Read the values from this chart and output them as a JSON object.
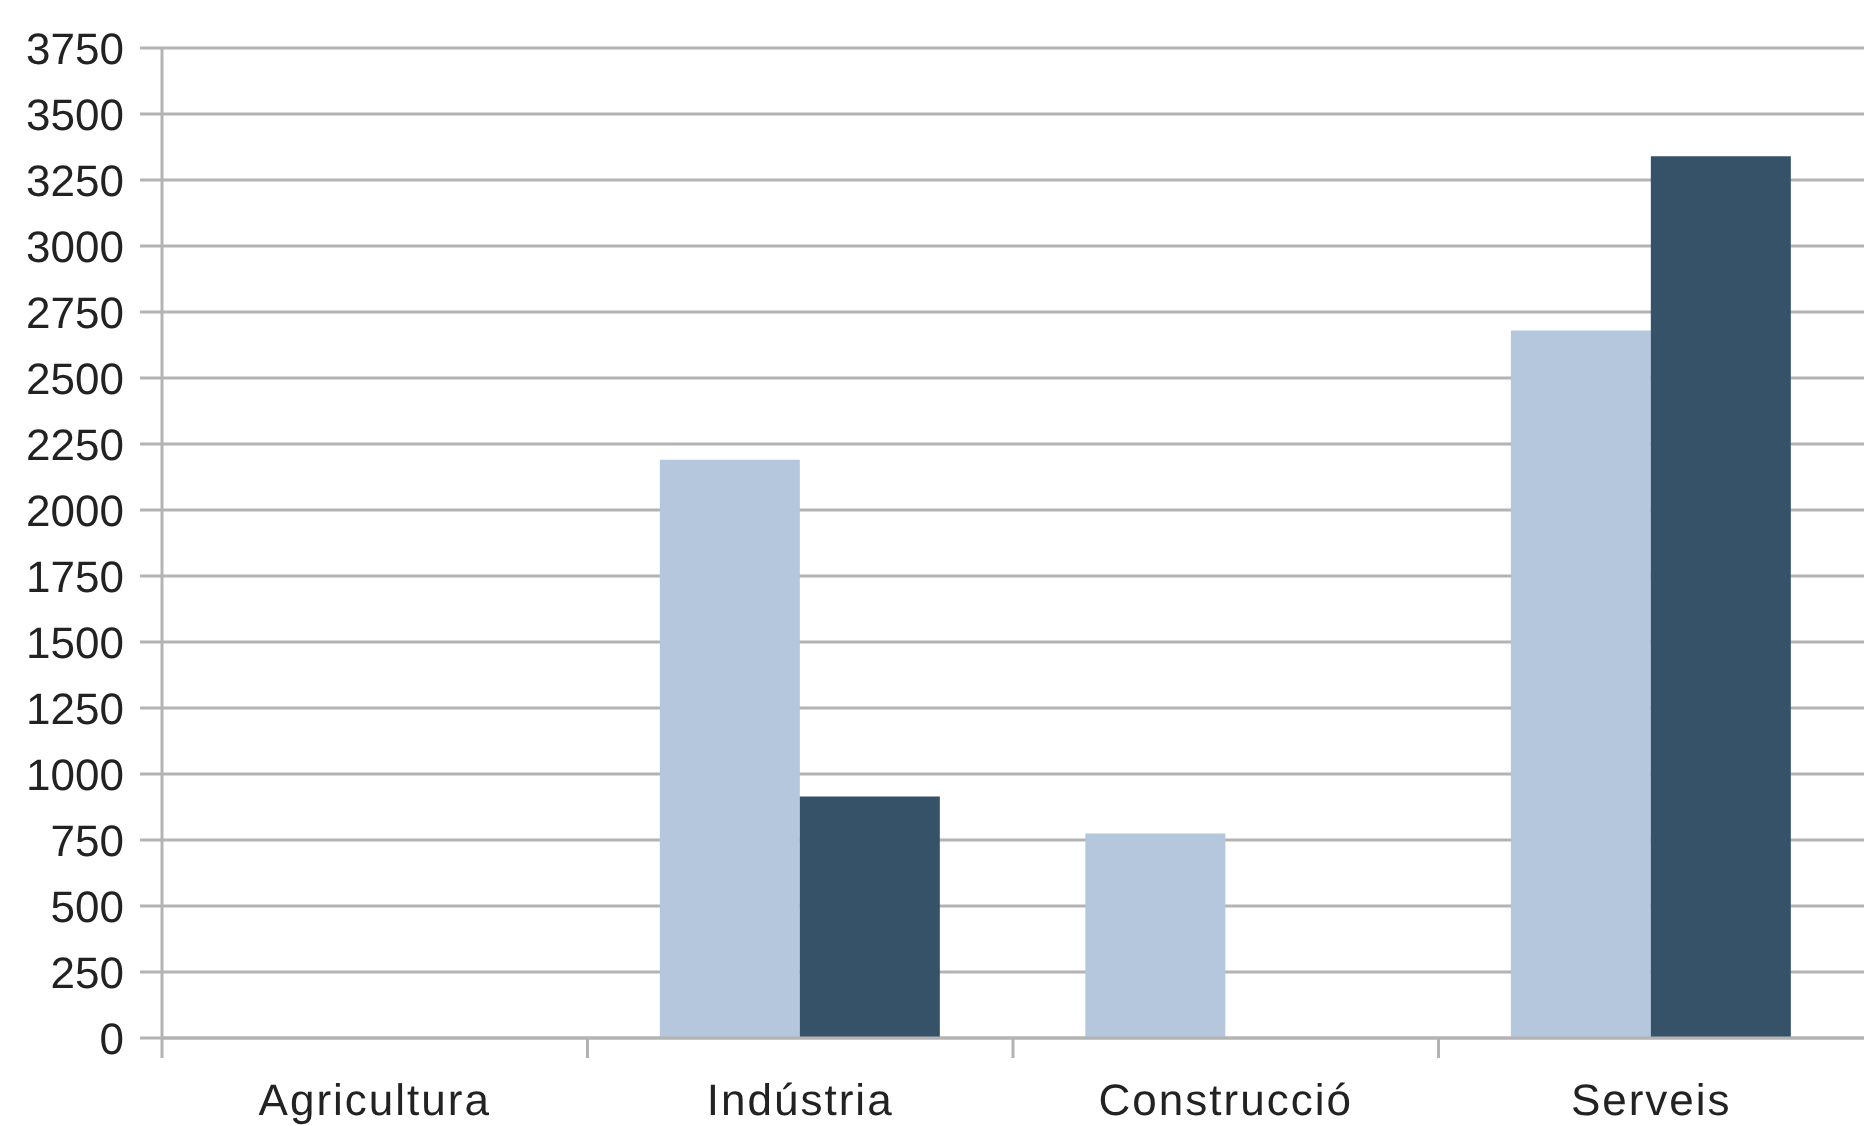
{
  "chart_data": {
    "type": "bar",
    "categories": [
      "Agricultura",
      "Indústria",
      "Construcció",
      "Serveis"
    ],
    "series": [
      {
        "color": "#b4c7dc",
        "values": [
          0,
          2190,
          775,
          2680
        ]
      },
      {
        "color": "#355269",
        "values": [
          0,
          915,
          0,
          3340
        ]
      }
    ],
    "ylim": [
      0,
      3750
    ],
    "yticks": [
      0,
      250,
      500,
      750,
      1000,
      1250,
      1500,
      1750,
      2000,
      2250,
      2500,
      2750,
      3000,
      3250,
      3500,
      3750
    ],
    "grid": "y"
  }
}
